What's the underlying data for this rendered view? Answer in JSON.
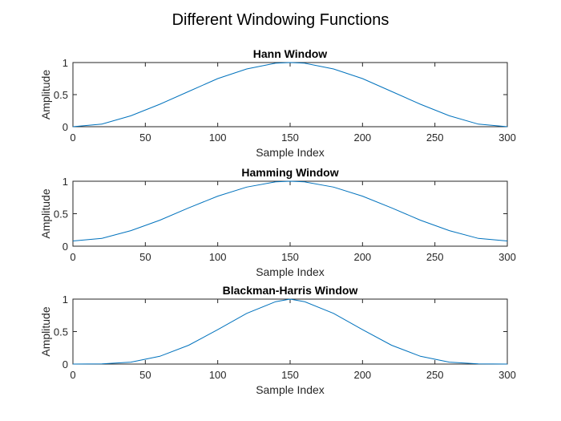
{
  "figure": {
    "title": "Different Windowing Functions"
  },
  "colors": {
    "series": "#0072BD",
    "axes": "#262626",
    "background": "#ffffff"
  },
  "chart_data": [
    {
      "type": "line",
      "title": "Hann Window",
      "xlabel": "Sample Index",
      "ylabel": "Amplitude",
      "xlim": [
        0,
        300
      ],
      "ylim": [
        0,
        1
      ],
      "xticks": [
        0,
        50,
        100,
        150,
        200,
        250,
        300
      ],
      "yticks": [
        0,
        0.5,
        1
      ],
      "ytick_labels": [
        "0",
        "0.5",
        "1"
      ],
      "grid": false,
      "series": [
        {
          "x": [
            0,
            20,
            40,
            60,
            80,
            100,
            120,
            140,
            150,
            160,
            180,
            200,
            220,
            240,
            260,
            280,
            300
          ],
          "y": [
            0,
            0.04,
            0.17,
            0.35,
            0.55,
            0.75,
            0.9,
            0.99,
            1.0,
            0.99,
            0.9,
            0.75,
            0.55,
            0.35,
            0.17,
            0.04,
            0
          ]
        }
      ]
    },
    {
      "type": "line",
      "title": "Hamming Window",
      "xlabel": "Sample Index",
      "ylabel": "Amplitude",
      "xlim": [
        0,
        300
      ],
      "ylim": [
        0,
        1
      ],
      "xticks": [
        0,
        50,
        100,
        150,
        200,
        250,
        300
      ],
      "yticks": [
        0,
        0.5,
        1
      ],
      "ytick_labels": [
        "0",
        "0.5",
        "1"
      ],
      "grid": false,
      "series": [
        {
          "x": [
            0,
            20,
            40,
            60,
            80,
            100,
            120,
            140,
            150,
            160,
            180,
            200,
            220,
            240,
            260,
            280,
            300
          ],
          "y": [
            0.08,
            0.12,
            0.24,
            0.4,
            0.59,
            0.77,
            0.91,
            0.99,
            1.0,
            0.99,
            0.91,
            0.77,
            0.59,
            0.4,
            0.24,
            0.12,
            0.08
          ]
        }
      ]
    },
    {
      "type": "line",
      "title": "Blackman-Harris Window",
      "xlabel": "Sample Index",
      "ylabel": "Amplitude",
      "xlim": [
        0,
        300
      ],
      "ylim": [
        0,
        1
      ],
      "xticks": [
        0,
        50,
        100,
        150,
        200,
        250,
        300
      ],
      "yticks": [
        0,
        0.5,
        1
      ],
      "ytick_labels": [
        "0",
        "0.5",
        "1"
      ],
      "grid": false,
      "series": [
        {
          "x": [
            0,
            20,
            40,
            60,
            80,
            100,
            120,
            140,
            150,
            160,
            180,
            200,
            220,
            240,
            260,
            280,
            300
          ],
          "y": [
            0,
            0.004,
            0.03,
            0.12,
            0.29,
            0.53,
            0.78,
            0.96,
            1.0,
            0.96,
            0.78,
            0.53,
            0.29,
            0.12,
            0.03,
            0.004,
            0
          ]
        }
      ]
    }
  ]
}
